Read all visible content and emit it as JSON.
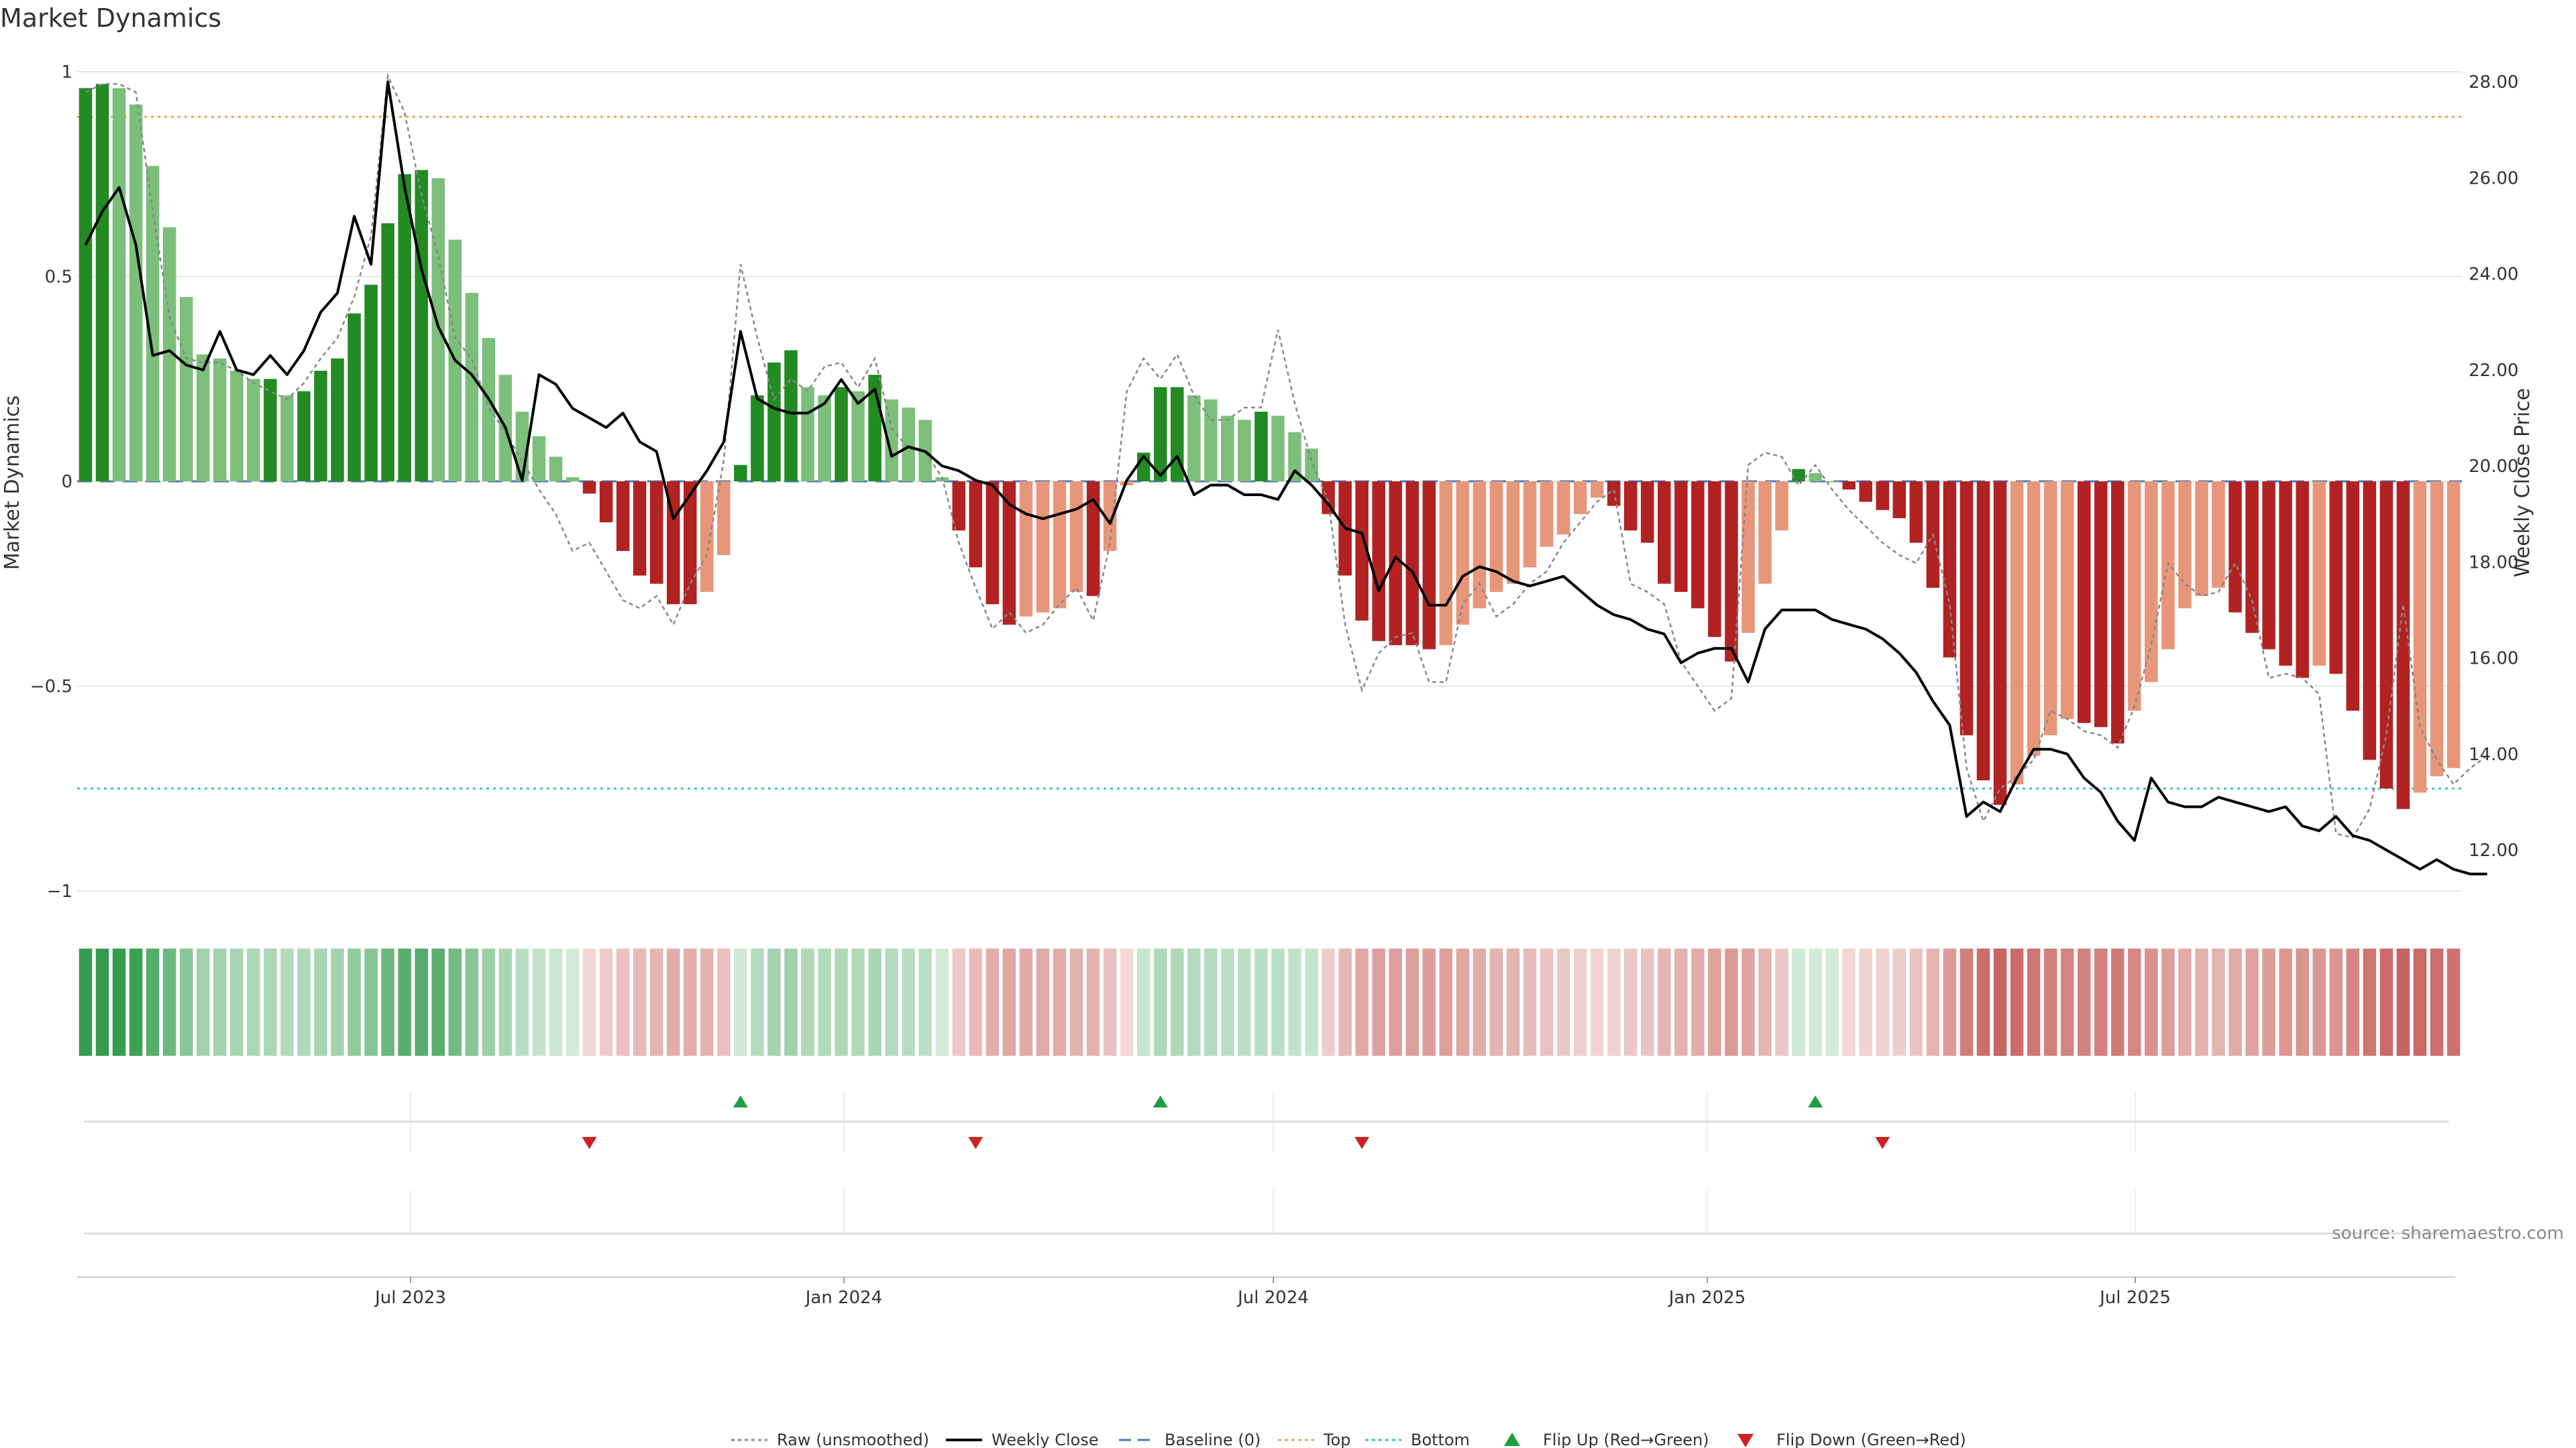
{
  "chart_data": {
    "type": "bar",
    "title": "Market Dynamics",
    "y_left_label": "Market Dynamics",
    "y_right_label": "Weekly Close Price",
    "y_left_range": [
      -1,
      1
    ],
    "y_left_ticks": [
      "1",
      "0.5",
      "0",
      "−0.5",
      "−1"
    ],
    "y_right_range": [
      11.3,
      28.2
    ],
    "y_right_ticks": [
      "28.00",
      "26.00",
      "24.00",
      "22.00",
      "20.00",
      "18.00",
      "16.00",
      "14.00",
      "12.00"
    ],
    "x_ticks": [
      "Jul 2023",
      "Jan 2024",
      "Jul 2024",
      "Jan 2025",
      "Jul 2025"
    ],
    "reference_lines": {
      "baseline": 0,
      "top": 0.89,
      "bottom": -0.75
    },
    "bars": [
      0.96,
      0.97,
      0.96,
      0.92,
      0.77,
      0.62,
      0.45,
      0.31,
      0.3,
      0.27,
      0.25,
      0.25,
      0.21,
      0.22,
      0.27,
      0.3,
      0.41,
      0.48,
      0.63,
      0.75,
      0.76,
      0.74,
      0.59,
      0.46,
      0.35,
      0.26,
      0.17,
      0.11,
      0.06,
      0.01,
      -0.03,
      -0.1,
      -0.17,
      -0.23,
      -0.25,
      -0.3,
      -0.3,
      -0.27,
      -0.18,
      0.04,
      0.21,
      0.29,
      0.32,
      0.23,
      0.21,
      0.23,
      0.22,
      0.26,
      0.2,
      0.18,
      0.15,
      0.01,
      -0.12,
      -0.21,
      -0.3,
      -0.35,
      -0.33,
      -0.32,
      -0.31,
      -0.27,
      -0.28,
      -0.17,
      -0.01,
      0.07,
      0.23,
      0.23,
      0.21,
      0.2,
      0.16,
      0.15,
      0.17,
      0.16,
      0.12,
      0.08,
      -0.08,
      -0.23,
      -0.34,
      -0.39,
      -0.4,
      -0.4,
      -0.41,
      -0.4,
      -0.35,
      -0.31,
      -0.27,
      -0.25,
      -0.21,
      -0.16,
      -0.13,
      -0.08,
      -0.04,
      -0.06,
      -0.12,
      -0.15,
      -0.25,
      -0.27,
      -0.31,
      -0.38,
      -0.44,
      -0.37,
      -0.25,
      -0.12,
      0.03,
      0.02,
      0.0,
      -0.02,
      -0.05,
      -0.07,
      -0.09,
      -0.15,
      -0.26,
      -0.43,
      -0.62,
      -0.73,
      -0.79,
      -0.74,
      -0.67,
      -0.62,
      -0.58,
      -0.59,
      -0.6,
      -0.64,
      -0.56,
      -0.49,
      -0.41,
      -0.31,
      -0.28,
      -0.26,
      -0.32,
      -0.37,
      -0.41,
      -0.45,
      -0.48,
      -0.45,
      -0.47,
      -0.56,
      -0.68,
      -0.75,
      -0.8,
      -0.76,
      -0.72,
      -0.7
    ],
    "weekly_close": [
      24.6,
      25.3,
      25.8,
      24.6,
      22.3,
      22.4,
      22.1,
      22.0,
      22.8,
      22.0,
      21.9,
      22.3,
      21.9,
      22.4,
      23.2,
      23.6,
      25.2,
      24.2,
      28.0,
      25.8,
      24.1,
      22.9,
      22.2,
      21.9,
      21.4,
      20.8,
      19.7,
      21.9,
      21.7,
      21.2,
      21.0,
      20.8,
      21.1,
      20.5,
      20.3,
      18.9,
      19.4,
      19.9,
      20.5,
      22.8,
      21.4,
      21.2,
      21.1,
      21.1,
      21.3,
      21.8,
      21.3,
      21.6,
      20.2,
      20.4,
      20.3,
      20.0,
      19.9,
      19.7,
      19.6,
      19.2,
      19.0,
      18.9,
      19.0,
      19.1,
      19.3,
      18.8,
      19.7,
      20.2,
      19.8,
      20.2,
      19.4,
      19.6,
      19.6,
      19.4,
      19.4,
      19.3,
      19.9,
      19.6,
      19.2,
      18.7,
      18.6,
      17.4,
      18.1,
      17.8,
      17.1,
      17.1,
      17.7,
      17.9,
      17.8,
      17.6,
      17.5,
      17.6,
      17.7,
      17.4,
      17.1,
      16.9,
      16.8,
      16.6,
      16.5,
      15.9,
      16.1,
      16.2,
      16.2,
      15.5,
      16.6,
      17.0,
      17.0,
      17.0,
      16.8,
      16.7,
      16.6,
      16.4,
      16.1,
      15.7,
      15.1,
      14.6,
      12.7,
      13.0,
      12.8,
      13.5,
      14.1,
      14.1,
      14.0,
      13.5,
      13.2,
      12.6,
      12.2,
      13.5,
      13.0,
      12.9,
      12.9,
      13.1,
      13.0,
      12.9,
      12.8,
      12.9,
      12.5,
      12.4,
      12.7,
      12.3,
      12.2,
      12.0,
      11.8,
      11.6,
      11.8,
      11.6,
      11.5,
      11.5
    ],
    "raw": [
      0.95,
      0.97,
      0.97,
      0.95,
      0.66,
      0.4,
      0.3,
      0.29,
      0.29,
      0.27,
      0.24,
      0.22,
      0.2,
      0.24,
      0.3,
      0.35,
      0.45,
      0.6,
      0.99,
      0.9,
      0.7,
      0.55,
      0.35,
      0.3,
      0.18,
      0.12,
      0.05,
      -0.02,
      -0.08,
      -0.17,
      -0.15,
      -0.22,
      -0.29,
      -0.31,
      -0.28,
      -0.35,
      -0.25,
      -0.18,
      0.05,
      0.53,
      0.35,
      0.2,
      0.25,
      0.22,
      0.28,
      0.29,
      0.23,
      0.3,
      0.13,
      0.08,
      0.07,
      0.01,
      -0.15,
      -0.26,
      -0.36,
      -0.32,
      -0.37,
      -0.35,
      -0.3,
      -0.26,
      -0.34,
      -0.15,
      0.22,
      0.3,
      0.25,
      0.31,
      0.21,
      0.15,
      0.15,
      0.18,
      0.18,
      0.37,
      0.19,
      0.05,
      -0.05,
      -0.35,
      -0.51,
      -0.42,
      -0.38,
      -0.37,
      -0.49,
      -0.49,
      -0.3,
      -0.25,
      -0.33,
      -0.3,
      -0.25,
      -0.22,
      -0.15,
      -0.1,
      -0.05,
      -0.02,
      -0.25,
      -0.27,
      -0.3,
      -0.44,
      -0.5,
      -0.56,
      -0.53,
      0.04,
      0.07,
      0.06,
      -0.01,
      0.04,
      -0.02,
      -0.07,
      -0.11,
      -0.15,
      -0.18,
      -0.2,
      -0.13,
      -0.3,
      -0.7,
      -0.83,
      -0.75,
      -0.72,
      -0.68,
      -0.56,
      -0.58,
      -0.61,
      -0.62,
      -0.65,
      -0.55,
      -0.4,
      -0.2,
      -0.25,
      -0.28,
      -0.27,
      -0.2,
      -0.29,
      -0.48,
      -0.47,
      -0.48,
      -0.52,
      -0.86,
      -0.87,
      -0.8,
      -0.62,
      -0.3,
      -0.6,
      -0.68,
      -0.74,
      -0.7,
      -0.67
    ],
    "sentiment_colors": {
      "strong_up": "#228b22",
      "weak_up": "#7bbf7b",
      "strong_down": "#b22222",
      "weak_down": "#e8967a"
    },
    "flip_up_index": [
      39,
      64,
      103
    ],
    "flip_down_index": [
      30,
      53,
      76,
      107
    ],
    "legend": [
      {
        "label": "Raw (unsmoothed)",
        "symbol": "dotted-line",
        "color": "#888888"
      },
      {
        "label": "Weekly Close",
        "symbol": "solid-line",
        "color": "#000000"
      },
      {
        "label": "Baseline (0)",
        "symbol": "dashed-line",
        "color": "#4a7ab5"
      },
      {
        "label": "Top",
        "symbol": "dotted-line",
        "color": "#f0a060"
      },
      {
        "label": "Bottom",
        "symbol": "dotted-line",
        "color": "#40c0d0"
      },
      {
        "label": "Flip Up (Red→Green)",
        "symbol": "triangle-up",
        "color": "#1e9e3e"
      },
      {
        "label": "Flip Down (Green→Red)",
        "symbol": "triangle-down",
        "color": "#cc2222"
      }
    ],
    "source": "source: sharemaestro.com"
  }
}
